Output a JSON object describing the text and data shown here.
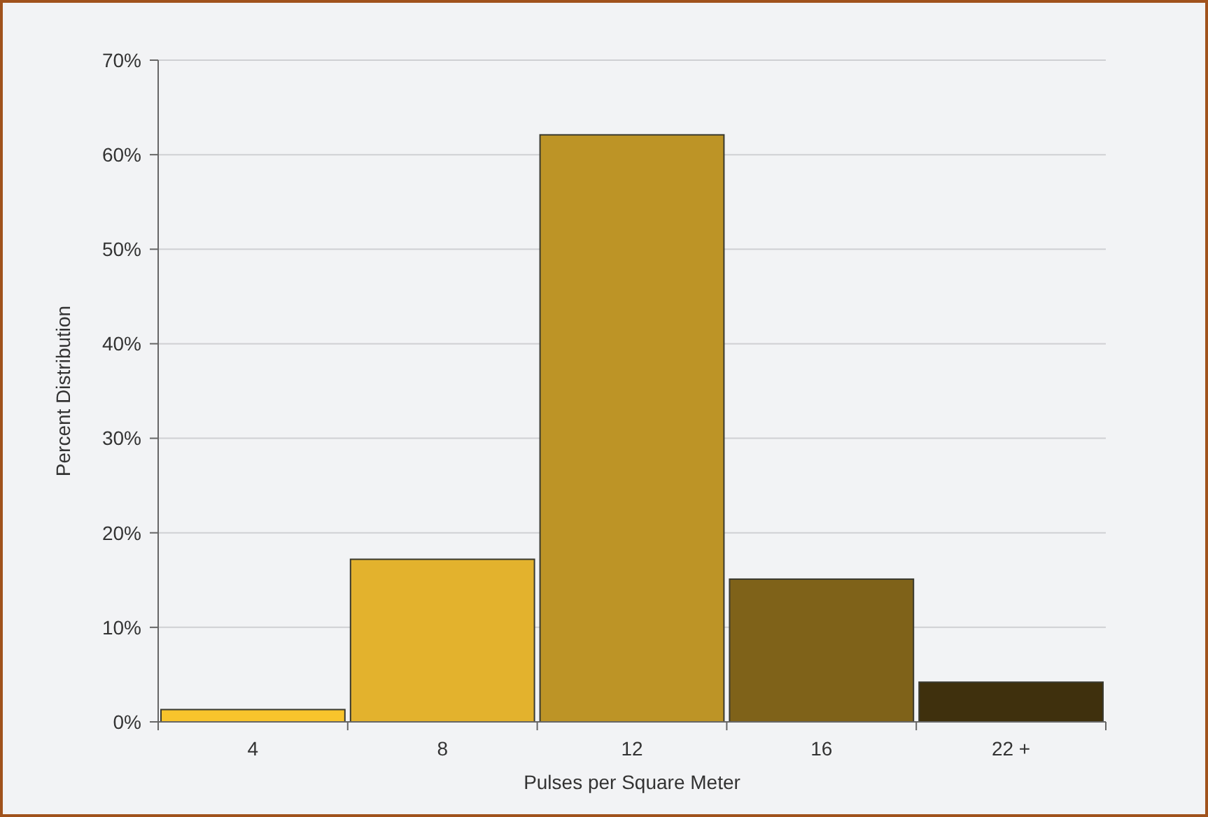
{
  "chart_data": {
    "type": "bar",
    "xlabel": "Pulses per Square Meter",
    "ylabel": "Percent Distribution",
    "categories": [
      "4",
      "8",
      "12",
      "16",
      "22 +"
    ],
    "values": [
      1.3,
      17.2,
      62.1,
      15.1,
      4.2
    ],
    "colors": [
      "#f8c42c",
      "#e3b22d",
      "#bd9426",
      "#7f6219",
      "#3f300d"
    ],
    "ylim": [
      0,
      70
    ],
    "yticks": [
      {
        "value": 0,
        "label": "0%"
      },
      {
        "value": 10,
        "label": "10%"
      },
      {
        "value": 20,
        "label": "20%"
      },
      {
        "value": 30,
        "label": "30%"
      },
      {
        "value": 40,
        "label": "40%"
      },
      {
        "value": 50,
        "label": "50%"
      },
      {
        "value": 60,
        "label": "60%"
      },
      {
        "value": 70,
        "label": "70%"
      }
    ],
    "grid": "y"
  }
}
